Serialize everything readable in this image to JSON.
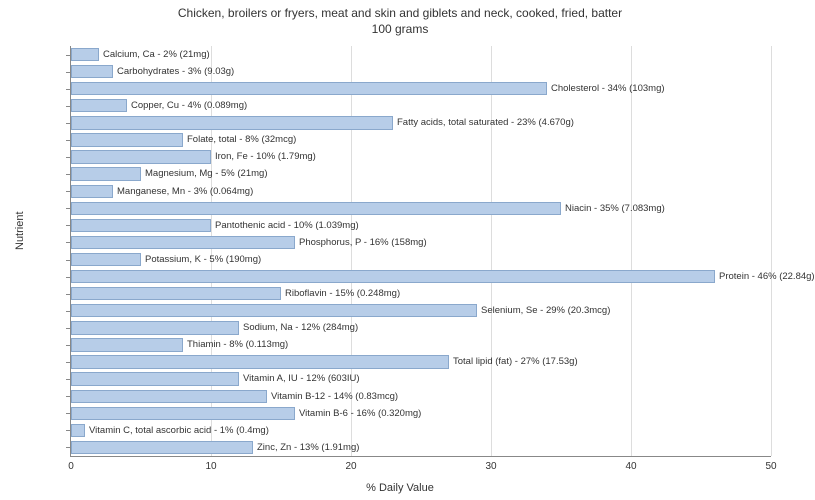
{
  "title_line1": "Chicken, broilers or fryers, meat and skin and giblets and neck, cooked, fried, batter",
  "title_line2": "100 grams",
  "y_axis_label": "Nutrient",
  "x_axis_label": "% Daily Value",
  "x_min": 0,
  "x_max": 50,
  "x_tick_step": 10,
  "bar_color": "#b7cde8",
  "bar_border_color": "#8aa8cc",
  "grid_color": "#dddddd",
  "background_color": "#ffffff",
  "text_color": "#333333",
  "title_fontsize": 12,
  "label_fontsize": 11,
  "tick_fontsize": 10,
  "bar_label_fontsize": 9.5,
  "nutrients": [
    {
      "label": "Calcium, Ca - 2% (21mg)",
      "value": 2
    },
    {
      "label": "Carbohydrates - 3% (9.03g)",
      "value": 3
    },
    {
      "label": "Cholesterol - 34% (103mg)",
      "value": 34
    },
    {
      "label": "Copper, Cu - 4% (0.089mg)",
      "value": 4
    },
    {
      "label": "Fatty acids, total saturated - 23% (4.670g)",
      "value": 23
    },
    {
      "label": "Folate, total - 8% (32mcg)",
      "value": 8
    },
    {
      "label": "Iron, Fe - 10% (1.79mg)",
      "value": 10
    },
    {
      "label": "Magnesium, Mg - 5% (21mg)",
      "value": 5
    },
    {
      "label": "Manganese, Mn - 3% (0.064mg)",
      "value": 3
    },
    {
      "label": "Niacin - 35% (7.083mg)",
      "value": 35
    },
    {
      "label": "Pantothenic acid - 10% (1.039mg)",
      "value": 10
    },
    {
      "label": "Phosphorus, P - 16% (158mg)",
      "value": 16
    },
    {
      "label": "Potassium, K - 5% (190mg)",
      "value": 5
    },
    {
      "label": "Protein - 46% (22.84g)",
      "value": 46
    },
    {
      "label": "Riboflavin - 15% (0.248mg)",
      "value": 15
    },
    {
      "label": "Selenium, Se - 29% (20.3mcg)",
      "value": 29
    },
    {
      "label": "Sodium, Na - 12% (284mg)",
      "value": 12
    },
    {
      "label": "Thiamin - 8% (0.113mg)",
      "value": 8
    },
    {
      "label": "Total lipid (fat) - 27% (17.53g)",
      "value": 27
    },
    {
      "label": "Vitamin A, IU - 12% (603IU)",
      "value": 12
    },
    {
      "label": "Vitamin B-12 - 14% (0.83mcg)",
      "value": 14
    },
    {
      "label": "Vitamin B-6 - 16% (0.320mg)",
      "value": 16
    },
    {
      "label": "Vitamin C, total ascorbic acid - 1% (0.4mg)",
      "value": 1
    },
    {
      "label": "Zinc, Zn - 13% (1.91mg)",
      "value": 13
    }
  ]
}
